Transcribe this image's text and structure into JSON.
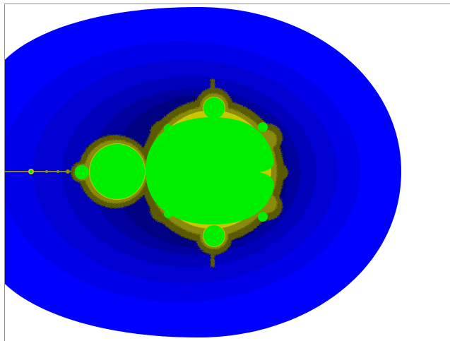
{
  "image": {
    "subject": "mandelbrot-set",
    "colors": {
      "background": "#ffffff",
      "escape_outer": "#0000ff",
      "escape_band_2": "#0000e8",
      "escape_band_3": "#0000d2",
      "escape_band_4": "#0000bb",
      "escape_band_5": "#00009e",
      "escape_band_6": "#000082",
      "boundary_dark": "#5a5a00",
      "boundary_olive": "#8a8a10",
      "boundary_yellow": "#c8c800",
      "set_interior": "#00ee00",
      "frame_line": "#8c8c8c"
    }
  }
}
